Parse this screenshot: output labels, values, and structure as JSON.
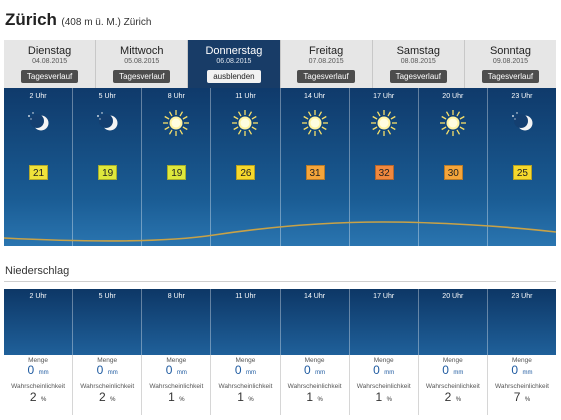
{
  "location": {
    "city": "Zürich",
    "altitude": "(408 m ü. M.) Zürich"
  },
  "days": [
    {
      "name": "Dienstag",
      "date": "04.08.2015",
      "button": "Tagesverlauf",
      "active": false
    },
    {
      "name": "Mittwoch",
      "date": "05.08.2015",
      "button": "Tagesverlauf",
      "active": false
    },
    {
      "name": "Donnerstag",
      "date": "06.08.2015",
      "button": "ausblenden",
      "active": true
    },
    {
      "name": "Freitag",
      "date": "07.08.2015",
      "button": "Tagesverlauf",
      "active": false
    },
    {
      "name": "Samstag",
      "date": "08.08.2015",
      "button": "Tagesverlauf",
      "active": false
    },
    {
      "name": "Sonntag",
      "date": "09.08.2015",
      "button": "Tagesverlauf",
      "active": false
    }
  ],
  "hours": [
    {
      "time": "2 Uhr",
      "icon": "moon-icon",
      "temp": "21",
      "temp_color": "#f0e23a"
    },
    {
      "time": "5 Uhr",
      "icon": "moon-icon",
      "temp": "19",
      "temp_color": "#dfe83c"
    },
    {
      "time": "8 Uhr",
      "icon": "sun-icon",
      "temp": "19",
      "temp_color": "#dfe83c"
    },
    {
      "time": "11 Uhr",
      "icon": "sun-icon",
      "temp": "26",
      "temp_color": "#f6d82c"
    },
    {
      "time": "14 Uhr",
      "icon": "sun-icon",
      "temp": "31",
      "temp_color": "#f5a53a"
    },
    {
      "time": "17 Uhr",
      "icon": "sun-icon",
      "temp": "32",
      "temp_color": "#f0883e"
    },
    {
      "time": "20 Uhr",
      "icon": "sun-icon",
      "temp": "30",
      "temp_color": "#f5a53a"
    },
    {
      "time": "23 Uhr",
      "icon": "moon-icon",
      "temp": "25",
      "temp_color": "#f6d82c"
    }
  ],
  "precipitation": {
    "title": "Niederschlag",
    "amount_label": "Menge",
    "probability_label": "Wahrscheinlichkeit",
    "amount_unit": "mm",
    "probability_unit": "%",
    "entries": [
      {
        "time": "2 Uhr",
        "amount": "0",
        "probability": "2"
      },
      {
        "time": "5 Uhr",
        "amount": "0",
        "probability": "2"
      },
      {
        "time": "8 Uhr",
        "amount": "0",
        "probability": "1"
      },
      {
        "time": "11 Uhr",
        "amount": "0",
        "probability": "1"
      },
      {
        "time": "14 Uhr",
        "amount": "0",
        "probability": "1"
      },
      {
        "time": "17 Uhr",
        "amount": "0",
        "probability": "1"
      },
      {
        "time": "20 Uhr",
        "amount": "0",
        "probability": "2"
      },
      {
        "time": "23 Uhr",
        "amount": "0",
        "probability": "7"
      }
    ]
  },
  "colors": {
    "panel_top": "#0f3a6b",
    "curve": "#c8a247",
    "active_tab": "#183c67"
  }
}
